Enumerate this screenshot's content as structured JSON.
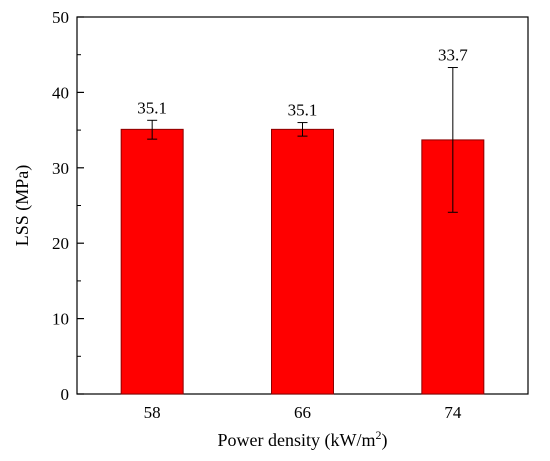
{
  "chart_data": {
    "type": "bar",
    "categories": [
      "58",
      "66",
      "74"
    ],
    "values": [
      35.1,
      35.1,
      33.7
    ],
    "data_labels": [
      "35.1",
      "35.1",
      "33.7"
    ],
    "error_bars": [
      {
        "low": 33.8,
        "high": 36.3
      },
      {
        "low": 34.2,
        "high": 36.0
      },
      {
        "low": 24.1,
        "high": 43.3
      }
    ],
    "xlabel": {
      "main": "Power density (kW/m",
      "sup": "2",
      "end": ")"
    },
    "ylabel": "LSS (MPa)",
    "ylim": [
      0,
      50
    ],
    "yticks": [
      "0",
      "10",
      "20",
      "30",
      "40",
      "50"
    ],
    "bar_color": "#ff0000",
    "bar_edge_color": "#8b0000",
    "grid": false
  }
}
